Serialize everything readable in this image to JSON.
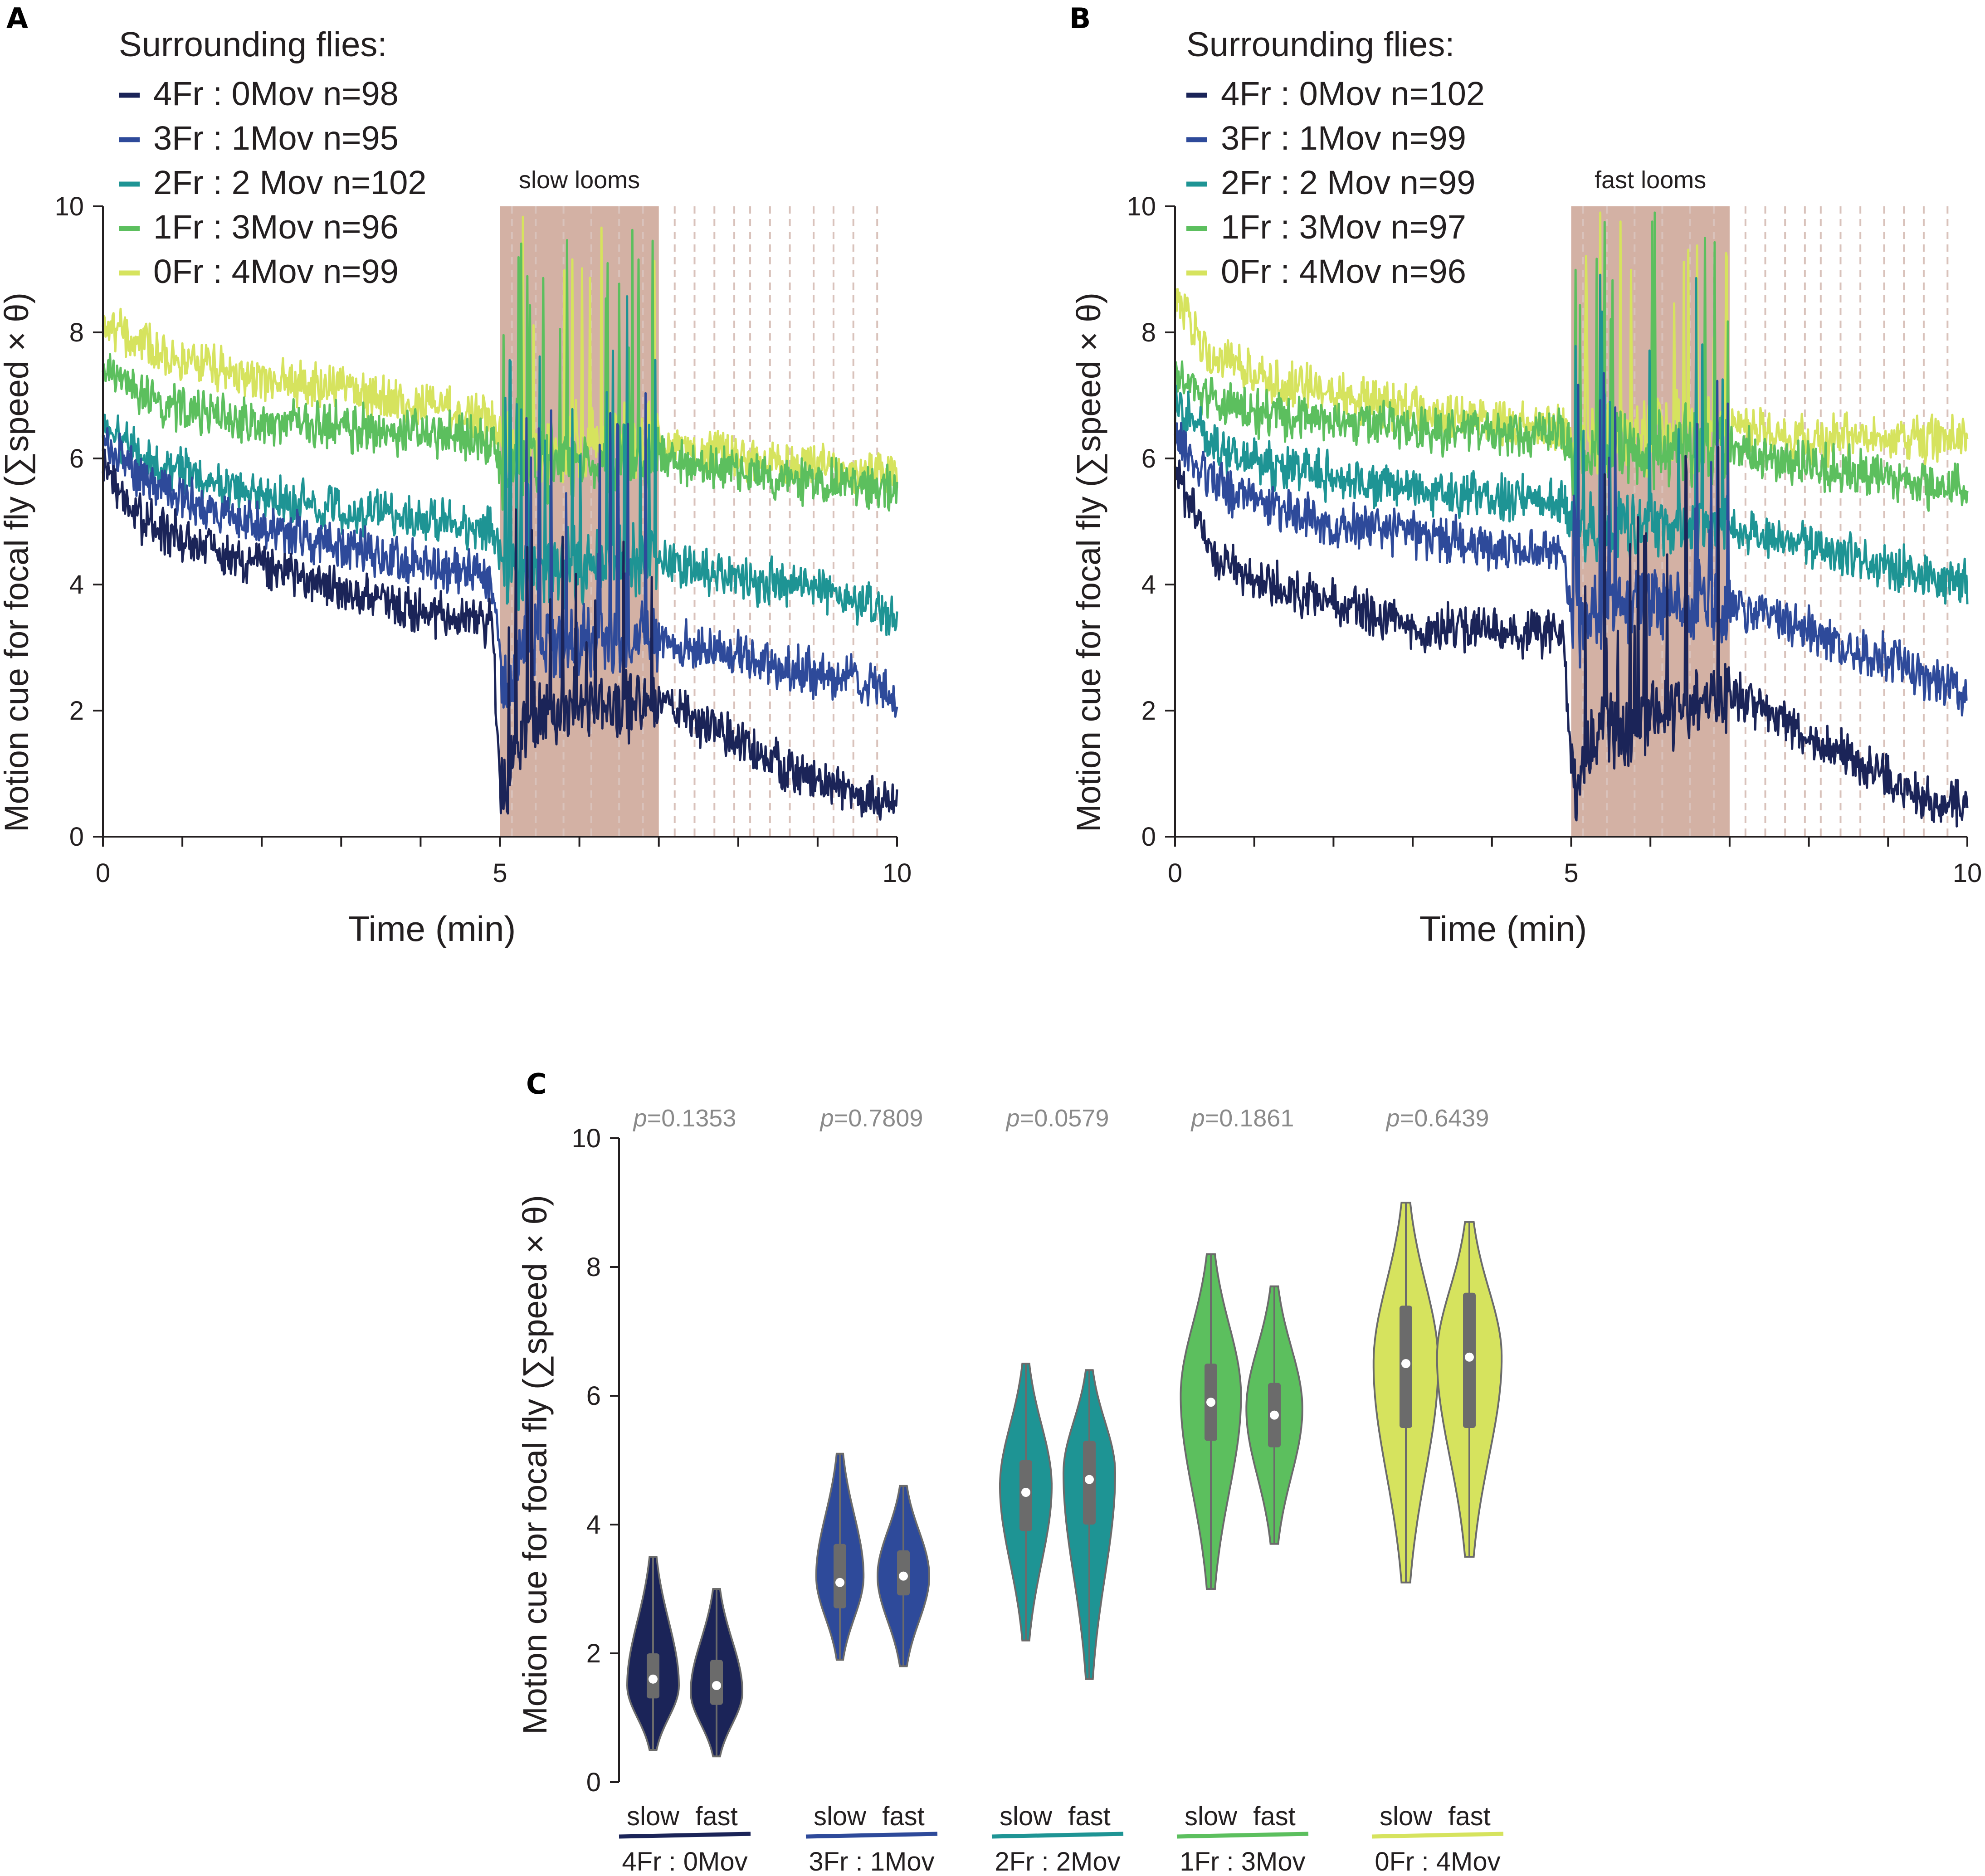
{
  "colors": {
    "c4Fr0Mov": "#1b2458",
    "c3Fr1Mov": "#2e4a9a",
    "c2Fr2Mov": "#1e9494",
    "c1Fr3Mov": "#5cbf5e",
    "c0Fr4Mov": "#d6e35e",
    "loom_shade": "#cba394",
    "box": "#6b6b6b",
    "median": "#ffffff",
    "axis": "#231f20",
    "pvalue_text": "#8a8a8a"
  },
  "panels": {
    "A": {
      "letter": "A",
      "legend_title": "Surrounding flies:",
      "legend": [
        "4Fr : 0Mov n=98",
        "3Fr : 1Mov n=95",
        "2Fr : 2 Mov n=102",
        "1Fr : 3Mov n=96",
        "0Fr : 4Mov n=99"
      ],
      "shade_label": "slow looms",
      "ylabel": "Motion cue for focal fly (∑speed × θ)",
      "xlabel": "Time (min)",
      "xticks": [
        "0",
        "5",
        "10"
      ],
      "yticks": [
        "0",
        "2",
        "4",
        "6",
        "8",
        "10"
      ]
    },
    "B": {
      "letter": "B",
      "legend_title": "Surrounding flies:",
      "legend": [
        "4Fr : 0Mov n=102",
        "3Fr : 1Mov n=99",
        "2Fr : 2 Mov n=99",
        "1Fr : 3Mov n=97",
        "0Fr : 4Mov n=96"
      ],
      "shade_label": "fast looms",
      "ylabel": "Motion cue for focal fly (∑speed × θ)",
      "xlabel": "Time (min)",
      "xticks": [
        "0",
        "5",
        "10"
      ],
      "yticks": [
        "0",
        "2",
        "4",
        "6",
        "8",
        "10"
      ]
    },
    "C": {
      "letter": "C",
      "ylabel": "Motion cue for focal fly (∑speed × θ)",
      "yticks": [
        "0",
        "2",
        "4",
        "6",
        "8",
        "10"
      ],
      "p_prefix": "p",
      "pvalues": [
        "=0.1353",
        "=0.7809",
        "=0.0579",
        "=0.1861",
        "=0.6439"
      ],
      "group_labels": [
        "4Fr : 0Mov",
        "3Fr : 1Mov",
        "2Fr : 2Mov",
        "1Fr : 3Mov",
        "0Fr : 4Mov"
      ],
      "condition_labels": [
        "slow",
        "fast"
      ]
    }
  },
  "chart_data": [
    {
      "type": "line",
      "panel": "A",
      "title": "slow looms",
      "xlabel": "Time (min)",
      "ylabel": "Motion cue for focal fly (∑speed × θ)",
      "xlim": [
        0,
        10
      ],
      "ylim": [
        0,
        10
      ],
      "loom_period_min": [
        5,
        7
      ],
      "loom_marks_min": [
        5.15,
        5.45,
        5.8,
        6.15,
        6.5,
        6.8,
        7.2,
        7.45,
        7.7,
        7.95,
        8.15,
        8.4,
        8.65,
        8.95,
        9.2,
        9.45,
        9.75
      ],
      "series": [
        {
          "name": "4Fr : 0Mov n=98",
          "color": "#1b2458",
          "x": [
            0,
            0.5,
            1,
            2,
            3,
            4,
            4.9,
            5,
            5.05,
            5.3,
            6,
            7,
            7.5,
            8,
            8.5,
            9,
            9.5,
            10
          ],
          "y": [
            5.8,
            5.0,
            4.7,
            4.3,
            3.9,
            3.6,
            3.4,
            1.0,
            0.6,
            1.8,
            2.0,
            2.2,
            1.8,
            1.5,
            1.2,
            0.9,
            0.6,
            0.6
          ]
        },
        {
          "name": "3Fr : 1Mov n=95",
          "color": "#2e4a9a",
          "x": [
            0,
            0.5,
            1,
            2,
            3,
            4,
            4.9,
            5,
            5.05,
            5.3,
            6,
            7,
            7.5,
            8,
            8.5,
            9,
            9.5,
            10
          ],
          "y": [
            6.2,
            5.7,
            5.4,
            4.9,
            4.6,
            4.3,
            4.1,
            2.8,
            2.2,
            3.0,
            3.1,
            3.2,
            3.0,
            2.9,
            2.7,
            2.6,
            2.5,
            2.2
          ]
        },
        {
          "name": "2Fr : 2 Mov n=102",
          "color": "#1e9494",
          "x": [
            0,
            0.5,
            1,
            2,
            3,
            4,
            4.9,
            5,
            5.05,
            5.3,
            6,
            7,
            7.5,
            8,
            8.5,
            9,
            9.5,
            10
          ],
          "y": [
            6.5,
            6.0,
            5.8,
            5.4,
            5.2,
            5.0,
            4.9,
            4.3,
            4.0,
            4.2,
            4.3,
            4.4,
            4.3,
            4.1,
            4.0,
            3.9,
            3.7,
            3.5
          ]
        },
        {
          "name": "1Fr : 3Mov n=96",
          "color": "#5cbf5e",
          "x": [
            0,
            0.5,
            1,
            2,
            3,
            4,
            4.9,
            5,
            5.05,
            5.3,
            6,
            7,
            7.5,
            8,
            8.5,
            9,
            9.5,
            10
          ],
          "y": [
            7.4,
            7.0,
            6.8,
            6.6,
            6.5,
            6.4,
            6.3,
            6.0,
            5.6,
            5.9,
            6.0,
            6.0,
            5.9,
            5.8,
            5.7,
            5.6,
            5.6,
            5.5
          ]
        },
        {
          "name": "0Fr : 4Mov n=99",
          "color": "#d6e35e",
          "x": [
            0,
            0.5,
            1,
            2,
            3,
            4,
            4.9,
            5,
            5.05,
            5.3,
            6,
            7,
            7.5,
            8,
            8.5,
            9,
            9.5,
            10
          ],
          "y": [
            8.2,
            7.8,
            7.6,
            7.3,
            7.1,
            6.8,
            6.6,
            6.3,
            6.1,
            6.2,
            6.3,
            6.2,
            6.1,
            6.0,
            5.9,
            5.9,
            5.8,
            5.8
          ]
        }
      ]
    },
    {
      "type": "line",
      "panel": "B",
      "title": "fast looms",
      "xlabel": "Time (min)",
      "ylabel": "Motion cue for focal fly (∑speed × θ)",
      "xlim": [
        0,
        10
      ],
      "ylim": [
        0,
        10
      ],
      "loom_period_min": [
        5,
        7
      ],
      "loom_marks_min": [
        5.15,
        5.45,
        5.8,
        6.15,
        6.5,
        6.8,
        7.2,
        7.45,
        7.7,
        7.95,
        8.15,
        8.4,
        8.65,
        8.95,
        9.2,
        9.45,
        9.75
      ],
      "series": [
        {
          "name": "4Fr : 0Mov n=102",
          "color": "#1b2458",
          "x": [
            0,
            0.5,
            1,
            2,
            3,
            4,
            4.9,
            5,
            5.05,
            5.3,
            6,
            7,
            7.5,
            8,
            8.5,
            9,
            9.5,
            10
          ],
          "y": [
            5.7,
            4.5,
            4.1,
            3.7,
            3.3,
            3.3,
            3.2,
            1.0,
            0.6,
            1.6,
            1.9,
            2.3,
            2.0,
            1.6,
            1.3,
            0.9,
            0.6,
            0.5
          ]
        },
        {
          "name": "3Fr : 1Mov n=99",
          "color": "#2e4a9a",
          "x": [
            0,
            0.5,
            1,
            2,
            3,
            4,
            4.9,
            5,
            5.05,
            5.3,
            6,
            7,
            7.5,
            8,
            8.5,
            9,
            9.5,
            10
          ],
          "y": [
            6.3,
            5.6,
            5.3,
            5.0,
            4.8,
            4.6,
            4.5,
            3.5,
            3.3,
            3.6,
            3.7,
            3.7,
            3.5,
            3.3,
            3.0,
            2.8,
            2.5,
            2.3
          ]
        },
        {
          "name": "2Fr : 2 Mov n=99",
          "color": "#1e9494",
          "x": [
            0,
            0.5,
            1,
            2,
            3,
            4,
            4.9,
            5,
            5.05,
            5.3,
            6,
            7,
            7.5,
            8,
            8.5,
            9,
            9.5,
            10
          ],
          "y": [
            6.9,
            6.2,
            5.9,
            5.7,
            5.5,
            5.4,
            5.3,
            4.9,
            4.8,
            4.9,
            5.0,
            4.9,
            4.7,
            4.6,
            4.4,
            4.3,
            4.1,
            4.0
          ]
        },
        {
          "name": "1Fr : 3Mov n=97",
          "color": "#5cbf5e",
          "x": [
            0,
            0.5,
            1,
            2,
            3,
            4,
            4.9,
            5,
            5.05,
            5.3,
            6,
            7,
            7.5,
            8,
            8.5,
            9,
            9.5,
            10
          ],
          "y": [
            7.3,
            6.9,
            6.7,
            6.6,
            6.5,
            6.4,
            6.4,
            6.1,
            6.0,
            6.1,
            6.2,
            6.2,
            6.0,
            5.9,
            5.8,
            5.7,
            5.6,
            5.6
          ]
        },
        {
          "name": "0Fr : 4Mov n=96",
          "color": "#d6e35e",
          "x": [
            0,
            0.5,
            1,
            2,
            3,
            4,
            4.9,
            5,
            5.05,
            5.3,
            6,
            7,
            7.5,
            8,
            8.5,
            9,
            9.5,
            10
          ],
          "y": [
            8.5,
            7.6,
            7.3,
            7.0,
            6.8,
            6.6,
            6.5,
            6.3,
            6.2,
            6.3,
            6.4,
            6.5,
            6.4,
            6.3,
            6.3,
            6.3,
            6.3,
            6.3
          ]
        }
      ]
    },
    {
      "type": "violin",
      "panel": "C",
      "ylabel": "Motion cue for focal fly (∑speed × θ)",
      "ylim": [
        0,
        10
      ],
      "groups": [
        {
          "name": "4Fr : 0Mov",
          "color": "#1b2458",
          "p_value": "=0.1353",
          "violins": [
            {
              "condition": "slow",
              "min": 0.5,
              "max": 3.5,
              "q1": 1.3,
              "median": 1.6,
              "q3": 2.0,
              "max_width_at": 1.5,
              "width": 0.6
            },
            {
              "condition": "fast",
              "min": 0.4,
              "max": 3.0,
              "q1": 1.2,
              "median": 1.5,
              "q3": 1.9,
              "max_width_at": 1.4,
              "width": 0.6
            }
          ]
        },
        {
          "name": "3Fr : 1Mov",
          "color": "#2e4a9a",
          "p_value": "=0.7809",
          "violins": [
            {
              "condition": "slow",
              "min": 1.9,
              "max": 5.1,
              "q1": 2.7,
              "median": 3.1,
              "q3": 3.7,
              "max_width_at": 3.2,
              "width": 0.55
            },
            {
              "condition": "fast",
              "min": 1.8,
              "max": 4.6,
              "q1": 2.9,
              "median": 3.2,
              "q3": 3.6,
              "max_width_at": 3.2,
              "width": 0.6
            }
          ]
        },
        {
          "name": "2Fr : 2Mov",
          "color": "#1e9494",
          "p_value": "=0.0579",
          "violins": [
            {
              "condition": "slow",
              "min": 2.2,
              "max": 6.5,
              "q1": 3.9,
              "median": 4.5,
              "q3": 5.0,
              "max_width_at": 4.6,
              "width": 0.6
            },
            {
              "condition": "fast",
              "min": 1.6,
              "max": 6.4,
              "q1": 4.0,
              "median": 4.7,
              "q3": 5.3,
              "max_width_at": 4.8,
              "width": 0.6
            }
          ]
        },
        {
          "name": "1Fr : 3Mov",
          "color": "#5cbf5e",
          "p_value": "=0.1861",
          "violins": [
            {
              "condition": "slow",
              "min": 3.0,
              "max": 8.2,
              "q1": 5.3,
              "median": 5.9,
              "q3": 6.5,
              "max_width_at": 6.0,
              "width": 0.7
            },
            {
              "condition": "fast",
              "min": 3.7,
              "max": 7.7,
              "q1": 5.2,
              "median": 5.7,
              "q3": 6.2,
              "max_width_at": 5.8,
              "width": 0.65
            }
          ]
        },
        {
          "name": "0Fr : 4Mov",
          "color": "#d6e35e",
          "p_value": "=0.6439",
          "violins": [
            {
              "condition": "slow",
              "min": 3.1,
              "max": 9.0,
              "q1": 5.5,
              "median": 6.5,
              "q3": 7.4,
              "max_width_at": 6.5,
              "width": 0.75
            },
            {
              "condition": "fast",
              "min": 3.5,
              "max": 8.7,
              "q1": 5.5,
              "median": 6.6,
              "q3": 7.6,
              "max_width_at": 6.6,
              "width": 0.75
            }
          ]
        }
      ]
    }
  ]
}
